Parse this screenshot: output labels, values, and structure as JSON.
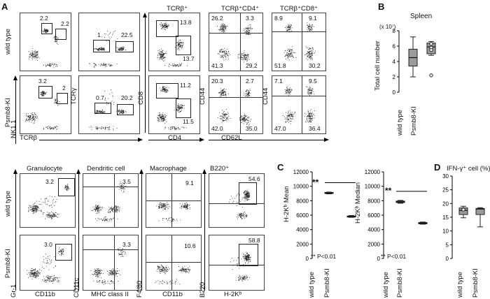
{
  "panel_letters": {
    "A": "A",
    "B": "B",
    "C": "C",
    "D": "D"
  },
  "row_labels": {
    "wild_type": "wild type",
    "psmb8": "Psmb8-KI"
  },
  "panel_a_top": {
    "column_headers": {
      "tcrb": "TCRβ⁺",
      "tcrb_cd4": "TCRβ⁺CD4⁺",
      "tcrb_cd8": "TCRβ⁺CD8⁺"
    },
    "axes": {
      "nk11": "NK1.1",
      "tcrb": "TCRβ",
      "tcrg": "TCRγ",
      "cd8": "CD8",
      "cd4": "CD4",
      "cd44a": "CD44",
      "cd62l": "CD62L",
      "cd44b": "CD44"
    },
    "values": {
      "wt_p1_a": "2.2",
      "wt_p1_b": "2.2",
      "wt_p2_a": "1",
      "wt_p2_b": "22.5",
      "wt_p3_a": "13.8",
      "wt_p3_b": "13.7",
      "wt_p4_tl": "26.2",
      "wt_p4_tr": "3.3",
      "wt_p4_bl": "41.3",
      "wt_p4_br": "29.2",
      "wt_p5_tl": "8.9",
      "wt_p5_tr": "9.1",
      "wt_p5_bl": "51.8",
      "wt_p5_br": "30.2",
      "ki_p1_a": "3.2",
      "ki_p1_b": "2",
      "ki_p2_a": "0.7",
      "ki_p2_b": "20.2",
      "ki_p3_a": "11.2",
      "ki_p3_b": "11.5",
      "ki_p4_tl": "20.3",
      "ki_p4_tr": "2.7",
      "ki_p4_bl": "42.0",
      "ki_p4_br": "35.0",
      "ki_p5_tl": "7.1",
      "ki_p5_tr": "9.5",
      "ki_p5_bl": "47.0",
      "ki_p5_br": "36.4"
    }
  },
  "panel_a_bottom": {
    "column_headers": {
      "gran": "Granulocyte",
      "dc": "Dendritic cell",
      "mac": "Macrophage",
      "b220": "B220⁺"
    },
    "axes": {
      "gr1": "Gr-1",
      "cd11b_a": "CD11b",
      "cd11c": "CD11c",
      "mhc": "MHC class II",
      "f480": "F4/80",
      "cd11b_b": "CD11b",
      "b220": "B220",
      "h2kb": "H-2Kᵇ"
    },
    "values": {
      "wt_gran": "3.2",
      "wt_dc": "3.5",
      "wt_mac": "9.1",
      "wt_b220": "54.6",
      "ki_gran": "3.0",
      "ki_dc": "3.3",
      "ki_mac": "10.6",
      "ki_b220": "58.8"
    }
  },
  "panel_b": {
    "title": "Spleen",
    "scale_note": "(x 10⁷)",
    "ylabel": "Total cell number",
    "xlabels": [
      "wild type",
      "Psmb8-KI"
    ]
  },
  "panel_c": {
    "mean_ylabel": "H-2Kᵇ Mean",
    "median_ylabel": "H-2Kᵇ Median",
    "sig": "**",
    "p_note": "** P<0.01",
    "xlabels": [
      "wild type",
      "Psmb8-KI"
    ]
  },
  "panel_d": {
    "title": "IFN-γ⁺ cell (%)",
    "xlabels": [
      "wild type",
      "Psmb8-KI"
    ]
  },
  "chart_data": [
    {
      "type": "box",
      "title": "Spleen",
      "ylabel": "Total cell number",
      "ylim": [
        0,
        8
      ],
      "ticks": [
        0,
        2,
        4,
        6,
        8
      ],
      "categories": [
        "wild type",
        "Psmb8-KI"
      ],
      "boxes": [
        {
          "min": 2.0,
          "q1": 3.4,
          "median": 4.5,
          "q3": 5.6,
          "max": 7.2,
          "points": []
        },
        {
          "min": 4.8,
          "q1": 5.0,
          "median": 5.9,
          "q3": 6.4,
          "max": 6.6,
          "points": [
            6.3,
            5.8,
            5.5,
            2.2
          ]
        }
      ]
    },
    {
      "type": "box",
      "ylabel": "H-2Kᵇ Mean",
      "ylim": [
        0,
        12000
      ],
      "ticks": [
        0,
        2000,
        4000,
        6000,
        8000,
        10000,
        12000
      ],
      "categories": [
        "wild type",
        "Psmb8-KI"
      ],
      "boxes": [
        {
          "min": 8950,
          "q1": 9000,
          "median": 9050,
          "q3": 9150,
          "max": 9200
        },
        {
          "min": 5700,
          "q1": 5750,
          "median": 5800,
          "q3": 5880,
          "max": 5950
        }
      ]
    },
    {
      "type": "box",
      "ylabel": "H-2Kᵇ Median",
      "ylim": [
        0,
        12000
      ],
      "ticks": [
        0,
        2000,
        4000,
        6000,
        8000,
        10000,
        12000
      ],
      "categories": [
        "wild type",
        "Psmb8-KI"
      ],
      "boxes": [
        {
          "min": 7650,
          "q1": 7750,
          "median": 7850,
          "q3": 7950,
          "max": 8050
        },
        {
          "min": 4750,
          "q1": 4800,
          "median": 4900,
          "q3": 4980,
          "max": 5050
        }
      ]
    },
    {
      "type": "box",
      "title": "IFN-γ⁺ cell (%)",
      "ylim": [
        0,
        30
      ],
      "ticks": [
        0,
        5,
        10,
        15,
        20,
        25,
        30
      ],
      "categories": [
        "wild type",
        "Psmb8-KI"
      ],
      "boxes": [
        {
          "min": 14.8,
          "q1": 16.0,
          "median": 17.5,
          "q3": 18.4,
          "max": 19.0,
          "points": [
            17.8
          ]
        },
        {
          "min": 11.5,
          "q1": 16.0,
          "median": 18.0,
          "q3": 18.2,
          "max": 18.5
        }
      ]
    }
  ]
}
